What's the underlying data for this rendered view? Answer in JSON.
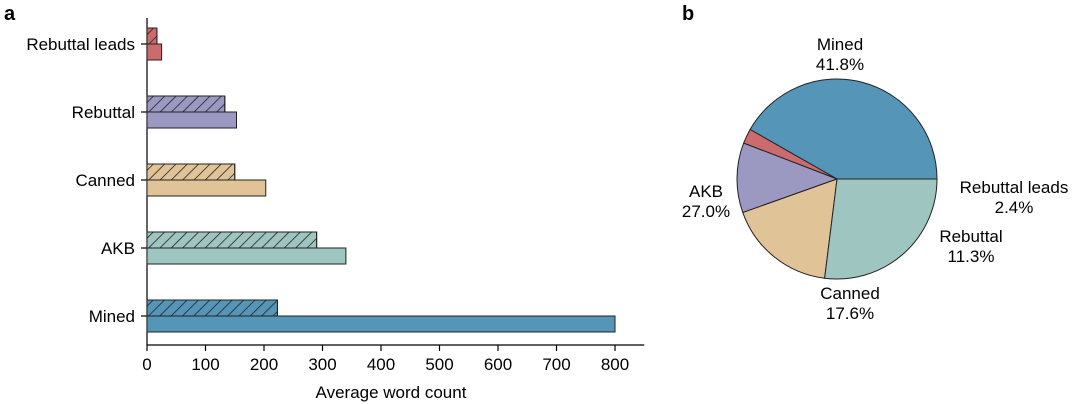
{
  "chart_data": [
    {
      "panel": "a",
      "type": "bar",
      "orientation": "horizontal",
      "categories": [
        "Rebuttal leads",
        "Rebuttal",
        "Canned",
        "AKB",
        "Mined"
      ],
      "series": [
        {
          "values": [
            17,
            133,
            150,
            290,
            223
          ],
          "hatched": true
        },
        {
          "values": [
            25,
            153,
            203,
            340,
            800
          ],
          "hatched": false
        }
      ],
      "category_colors": [
        "#cb6b6e",
        "#9b98c2",
        "#e0c498",
        "#9ec5c0",
        "#5595b7"
      ],
      "xlabel": "Average word count",
      "ylabel": "",
      "xlim": [
        0,
        850
      ],
      "xticks": [
        0,
        100,
        200,
        300,
        400,
        500,
        600,
        700,
        800
      ],
      "grid": false
    },
    {
      "panel": "b",
      "type": "pie",
      "slices": [
        {
          "label": "Mined",
          "value": 41.8,
          "pct_label": "41.8%",
          "color": "#5595b7"
        },
        {
          "label": "Rebuttal leads",
          "value": 2.4,
          "pct_label": "2.4%",
          "color": "#cb6b6e"
        },
        {
          "label": "Rebuttal",
          "value": 11.3,
          "pct_label": "11.3%",
          "color": "#9b98c2"
        },
        {
          "label": "Canned",
          "value": 17.6,
          "pct_label": "17.6%",
          "color": "#e0c498"
        },
        {
          "label": "AKB",
          "value": 27.0,
          "pct_label": "27.0%",
          "color": "#9ec5c0"
        }
      ]
    }
  ]
}
